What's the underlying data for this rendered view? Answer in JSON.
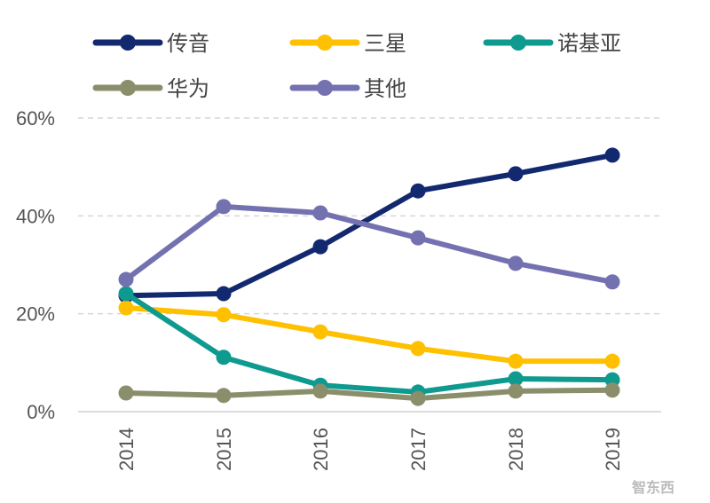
{
  "chart_data": {
    "type": "line",
    "categories": [
      "2014",
      "2015",
      "2016",
      "2017",
      "2018",
      "2019"
    ],
    "ylim": [
      0,
      60
    ],
    "yticks": [
      "0%",
      "20%",
      "40%",
      "60%"
    ],
    "ytick_values": [
      0,
      20,
      40,
      60
    ],
    "grid": "horizontal dashed",
    "legend_position": "top",
    "series": [
      {
        "name": "传音",
        "color": "#13296f",
        "values": [
          23.7,
          24.1,
          33.7,
          45.1,
          48.6,
          52.4
        ]
      },
      {
        "name": "三星",
        "color": "#ffc000",
        "values": [
          21.2,
          19.8,
          16.3,
          12.9,
          10.3,
          10.3
        ]
      },
      {
        "name": "诺基亚",
        "color": "#0e9a8f",
        "values": [
          24.1,
          11.1,
          5.4,
          4.0,
          6.7,
          6.5
        ]
      },
      {
        "name": "华为",
        "color": "#8b8e6b",
        "values": [
          3.8,
          3.3,
          4.2,
          2.7,
          4.2,
          4.4
        ]
      },
      {
        "name": "其他",
        "color": "#7471b1",
        "values": [
          27.0,
          41.9,
          40.6,
          35.5,
          30.3,
          26.5
        ]
      }
    ]
  },
  "watermark": "智东西"
}
